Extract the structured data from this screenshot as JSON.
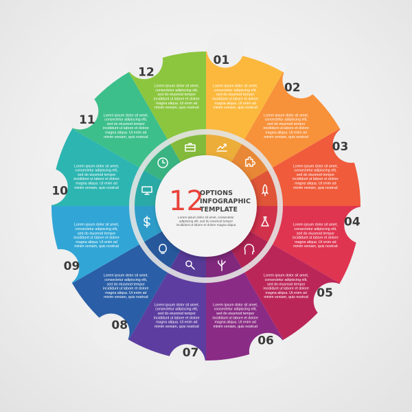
{
  "center": {
    "big_number": "12",
    "title_lines": [
      "OPTIONS",
      "INFOGRAPHIC",
      "TEMPLATE"
    ],
    "body_lines": [
      "Lorem ipsum dolor sit amet, consectetur",
      "adipiscing elit, sed do eiusmod tempor",
      "incididunt ut labore et dolore magna aliqua"
    ],
    "accent_color": "#e8433a"
  },
  "segment_text_lines": [
    "Lorem ipsum dolor sit amet,",
    "consectetur adipiscing elit,",
    "sed do eiusmod tempor",
    "incididunt ut labore et dolore",
    "magna aliqua. Ut enim ad",
    "minim veniam, quis nostrud"
  ],
  "segments": [
    {
      "number": "01",
      "color": "#fbb83d",
      "icon": "chart-icon"
    },
    {
      "number": "02",
      "color": "#f7913a",
      "icon": "puzzle-icon"
    },
    {
      "number": "03",
      "color": "#ef5b3b",
      "icon": "rocket-icon"
    },
    {
      "number": "04",
      "color": "#df3550",
      "icon": "flask-icon"
    },
    {
      "number": "05",
      "color": "#bb2659",
      "icon": "head-gears-icon"
    },
    {
      "number": "06",
      "color": "#8a2b85",
      "icon": "circuit-tree-icon"
    },
    {
      "number": "07",
      "color": "#5d3ea0",
      "icon": "magnifier-icon"
    },
    {
      "number": "08",
      "color": "#2a5ea6",
      "icon": "lightbulb-icon"
    },
    {
      "number": "09",
      "color": "#31a6d6",
      "icon": "dollar-icon"
    },
    {
      "number": "10",
      "color": "#2db5b1",
      "icon": "monitor-icon"
    },
    {
      "number": "11",
      "color": "#3dbf8b",
      "icon": "clock-icon"
    },
    {
      "number": "12",
      "color": "#8cc63f",
      "icon": "briefcase-icon"
    }
  ]
}
